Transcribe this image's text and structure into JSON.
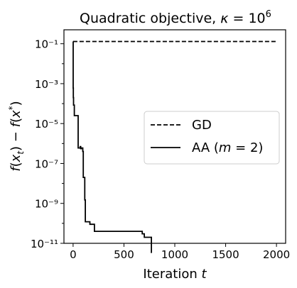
{
  "chart_data": {
    "type": "line",
    "title": "Quadratic objective, κ = 10⁶",
    "title_parts": {
      "main": "Quadratic objective, ",
      "kappa": "κ",
      "eq": " = 10",
      "exp": "6"
    },
    "xlabel": "Iteration t",
    "xlabel_parts": {
      "main": "Iteration ",
      "var": "t"
    },
    "ylabel": "f(x_t) − f(x*)",
    "yscale": "log",
    "xlim": [
      -90,
      2090
    ],
    "ylim": [
      1e-11,
      0.5
    ],
    "xticks": [
      0,
      500,
      1000,
      1500,
      2000
    ],
    "xtick_labels": [
      "0",
      "500",
      "1000",
      "1500",
      "2000"
    ],
    "yticks": [
      1e-11,
      1e-09,
      1e-07,
      1e-05,
      0.001,
      0.1
    ],
    "ytick_labels": [
      "10⁻¹¹",
      "10⁻⁹",
      "10⁻⁷",
      "10⁻⁵",
      "10⁻³",
      "10⁻¹"
    ],
    "grid": false,
    "legend": {
      "position": "center-right",
      "entries": [
        "GD",
        "AA (m = 2)"
      ]
    },
    "series": [
      {
        "name": "GD",
        "style": "dashed",
        "color": "#000000",
        "x": [
          0,
          2000
        ],
        "y": [
          0.13,
          0.13
        ]
      },
      {
        "name": "AA (m = 2)",
        "style": "solid",
        "color": "#000000",
        "x": [
          0,
          1,
          1,
          2,
          2,
          4,
          4,
          12,
          12,
          20,
          20,
          50,
          50,
          70,
          70,
          75,
          75,
          80,
          80,
          95,
          95,
          100,
          100,
          115,
          115,
          120,
          120,
          125,
          125,
          165,
          165,
          210,
          210,
          260,
          260,
          680,
          680,
          700,
          700,
          770,
          770,
          775
        ],
        "y": [
          0.13,
          0.13,
          0.0006,
          0.0006,
          0.0002,
          0.0002,
          8.5e-05,
          8.5e-05,
          2.5e-05,
          2.5e-05,
          2.5e-05,
          2.5e-05,
          6e-07,
          6e-07,
          7e-07,
          7e-07,
          5.5e-07,
          5.5e-07,
          6e-07,
          6e-07,
          4e-07,
          4e-07,
          2e-08,
          2e-08,
          1.5e-09,
          1.5e-09,
          1.2e-10,
          1.2e-10,
          1.2e-10,
          1.2e-10,
          9e-11,
          9e-11,
          4e-11,
          4e-11,
          4e-11,
          4e-11,
          3e-11,
          3e-11,
          2e-11,
          2e-11,
          3.5e-12,
          3.5e-12
        ]
      }
    ]
  }
}
